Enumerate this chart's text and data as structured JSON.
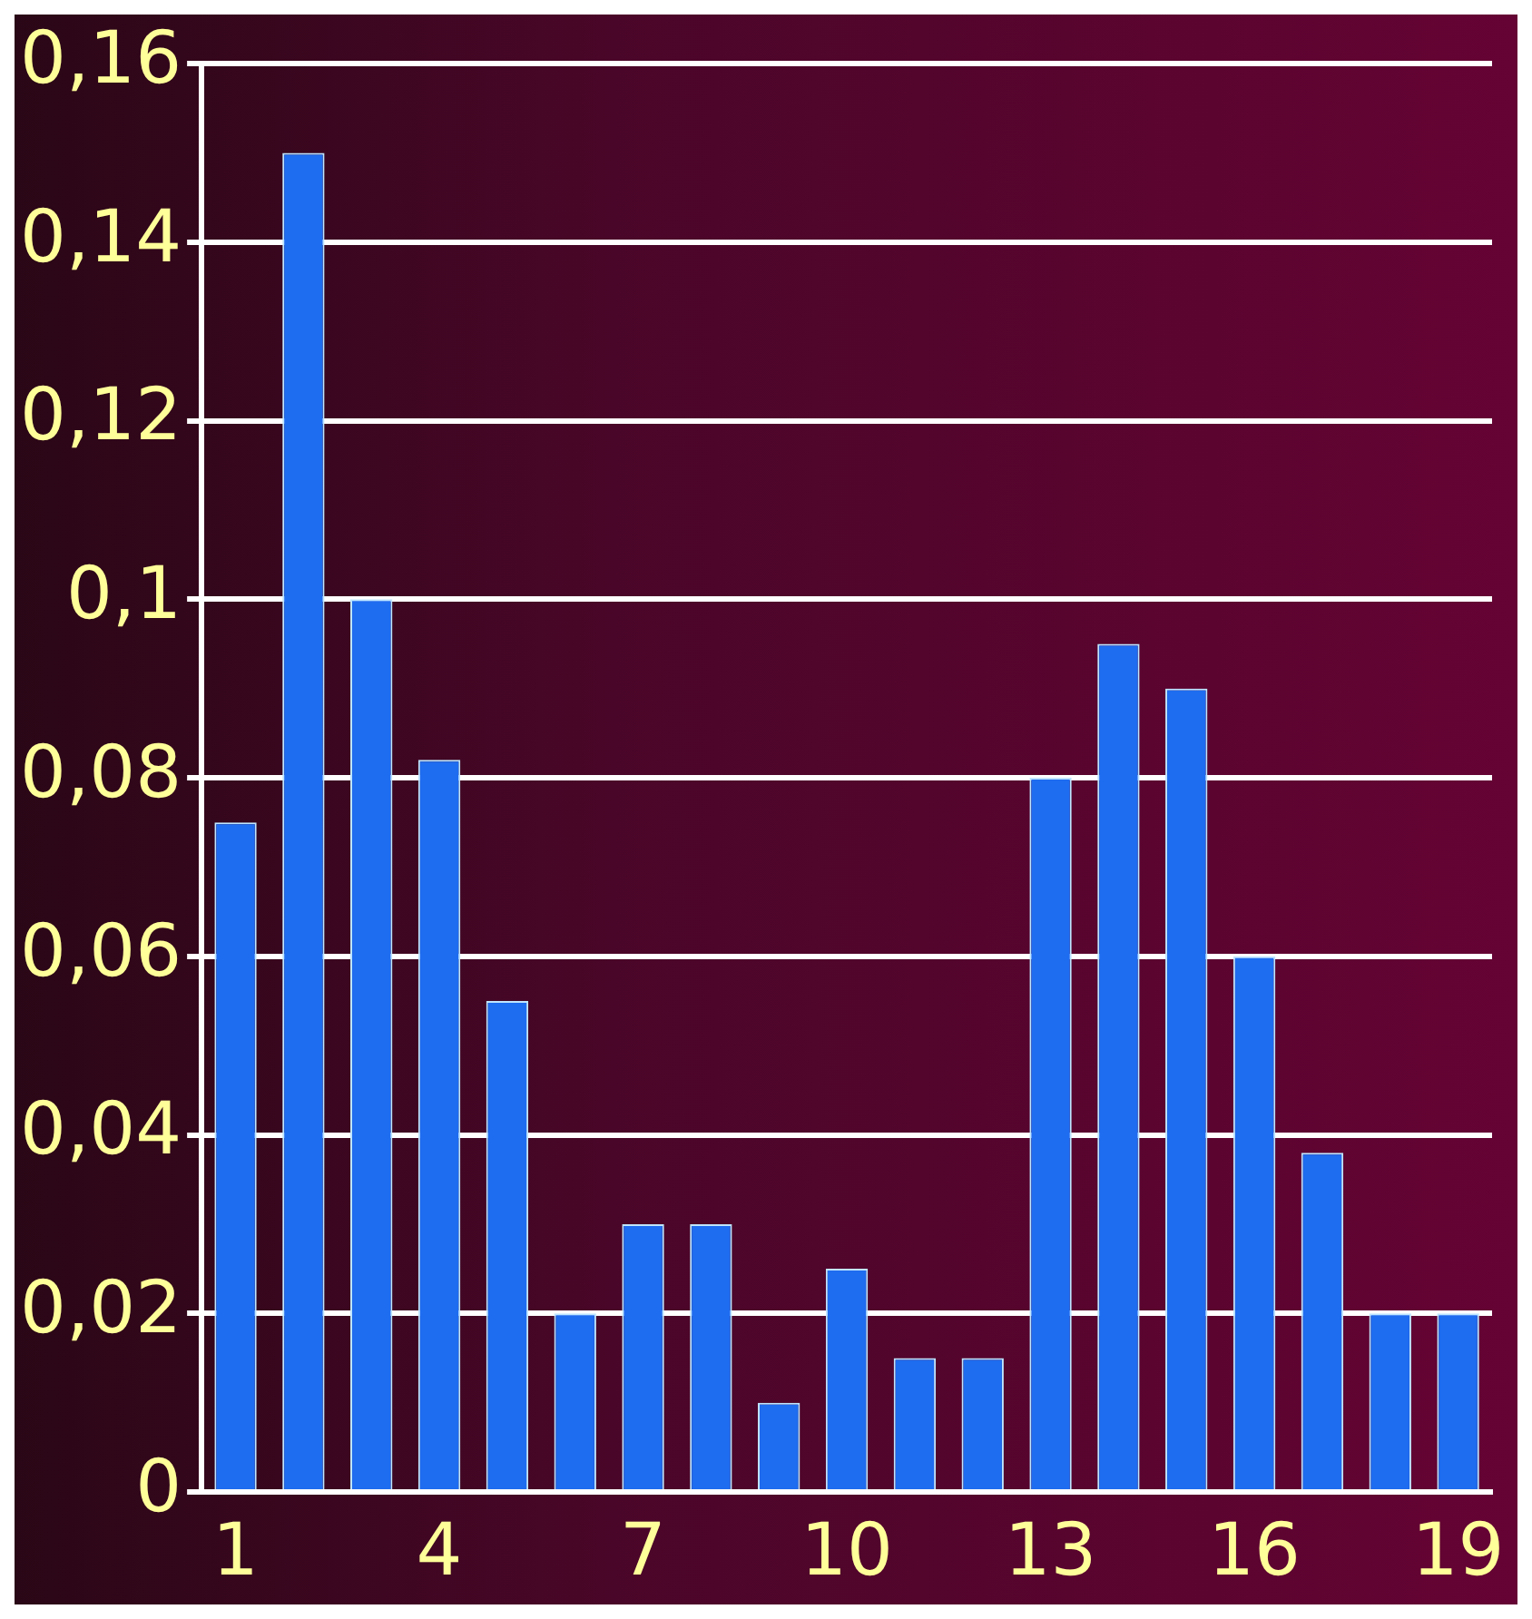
{
  "chart_data": {
    "type": "bar",
    "categories": [
      "1",
      null,
      null,
      "4",
      null,
      null,
      "7",
      null,
      null,
      "10",
      null,
      null,
      "13",
      null,
      null,
      "16",
      null,
      null,
      "19"
    ],
    "values": [
      0.075,
      0.15,
      0.1,
      0.082,
      0.055,
      0.02,
      0.03,
      0.03,
      0.01,
      0.025,
      0.015,
      0.015,
      0.08,
      0.095,
      0.09,
      0.06,
      0.038,
      0.02,
      0.02
    ],
    "color": "#1e6cf0",
    "ylim": [
      0,
      0.16
    ],
    "yticks": [
      0,
      {
        "value": 0.02,
        "label": "0,02"
      },
      {
        "value": 0.04,
        "label": "0,04"
      },
      {
        "value": 0.06,
        "label": "0,06"
      },
      {
        "value": 0.08,
        "label": "0,08"
      },
      {
        "value": 0.1,
        "label": "0,1"
      },
      {
        "value": 0.12,
        "label": "0,12"
      },
      {
        "value": 0.14,
        "label": "0,14"
      },
      {
        "value": 0.16,
        "label": "0,16"
      }
    ],
    "grid": "y"
  }
}
